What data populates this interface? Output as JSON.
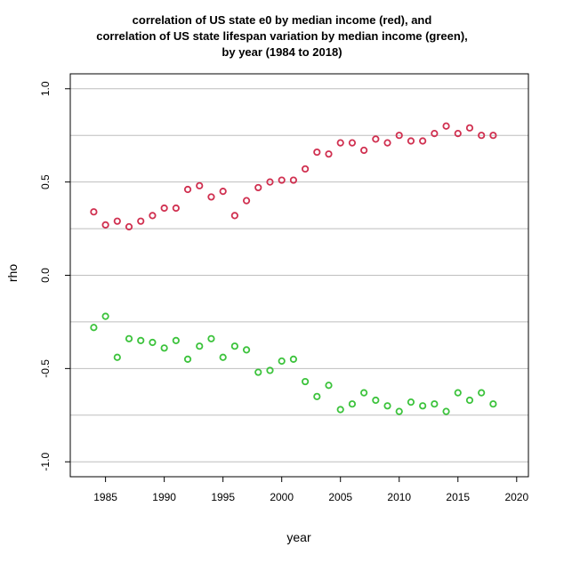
{
  "chart_data": {
    "type": "scatter",
    "title_lines": [
      "correlation of US state e0 by median income (red), and",
      "correlation of US state lifespan variation by median income (green),",
      "by year (1984 to 2018)"
    ],
    "xlabel": "year",
    "ylabel": "rho",
    "xlim": [
      1982,
      2021
    ],
    "ylim": [
      -1.08,
      1.08
    ],
    "xticks": [
      1985,
      1990,
      1995,
      2000,
      2005,
      2010,
      2015,
      2020
    ],
    "xtick_labels": [
      "1985",
      "1990",
      "1995",
      "2000",
      "2005",
      "2010",
      "2015",
      "2020"
    ],
    "yticks": [
      -1.0,
      -0.5,
      0.0,
      0.5,
      1.0
    ],
    "ytick_labels": [
      "-1.0",
      "-0.5",
      "0.0",
      "0.5",
      "1.0"
    ],
    "grid_lines_y": [
      -1.0,
      -0.75,
      -0.5,
      -0.25,
      0.0,
      0.25,
      0.5,
      0.75,
      1.0
    ],
    "grid": true,
    "x": [
      1984,
      1985,
      1986,
      1987,
      1988,
      1989,
      1990,
      1991,
      1992,
      1993,
      1994,
      1995,
      1996,
      1997,
      1998,
      1999,
      2000,
      2001,
      2002,
      2003,
      2004,
      2005,
      2006,
      2007,
      2008,
      2009,
      2010,
      2011,
      2012,
      2013,
      2014,
      2015,
      2016,
      2017,
      2018
    ],
    "series": [
      {
        "color": "#d03050",
        "values": [
          0.34,
          0.27,
          0.29,
          0.26,
          0.29,
          0.32,
          0.36,
          0.36,
          0.46,
          0.48,
          0.42,
          0.45,
          0.32,
          0.4,
          0.47,
          0.5,
          0.51,
          0.51,
          0.57,
          0.66,
          0.65,
          0.71,
          0.71,
          0.67,
          0.73,
          0.71,
          0.75,
          0.72,
          0.72,
          0.76,
          0.8,
          0.76,
          0.79,
          0.75,
          0.75
        ]
      },
      {
        "color": "#3cc33c",
        "values": [
          -0.28,
          -0.22,
          -0.44,
          -0.34,
          -0.35,
          -0.36,
          -0.39,
          -0.35,
          -0.45,
          -0.38,
          -0.34,
          -0.44,
          -0.38,
          -0.4,
          -0.52,
          -0.51,
          -0.46,
          -0.45,
          -0.57,
          -0.65,
          -0.59,
          -0.72,
          -0.69,
          -0.63,
          -0.67,
          -0.7,
          -0.73,
          -0.68,
          -0.7,
          -0.69,
          -0.73,
          -0.63,
          -0.67,
          -0.63,
          -0.69
        ]
      }
    ]
  }
}
